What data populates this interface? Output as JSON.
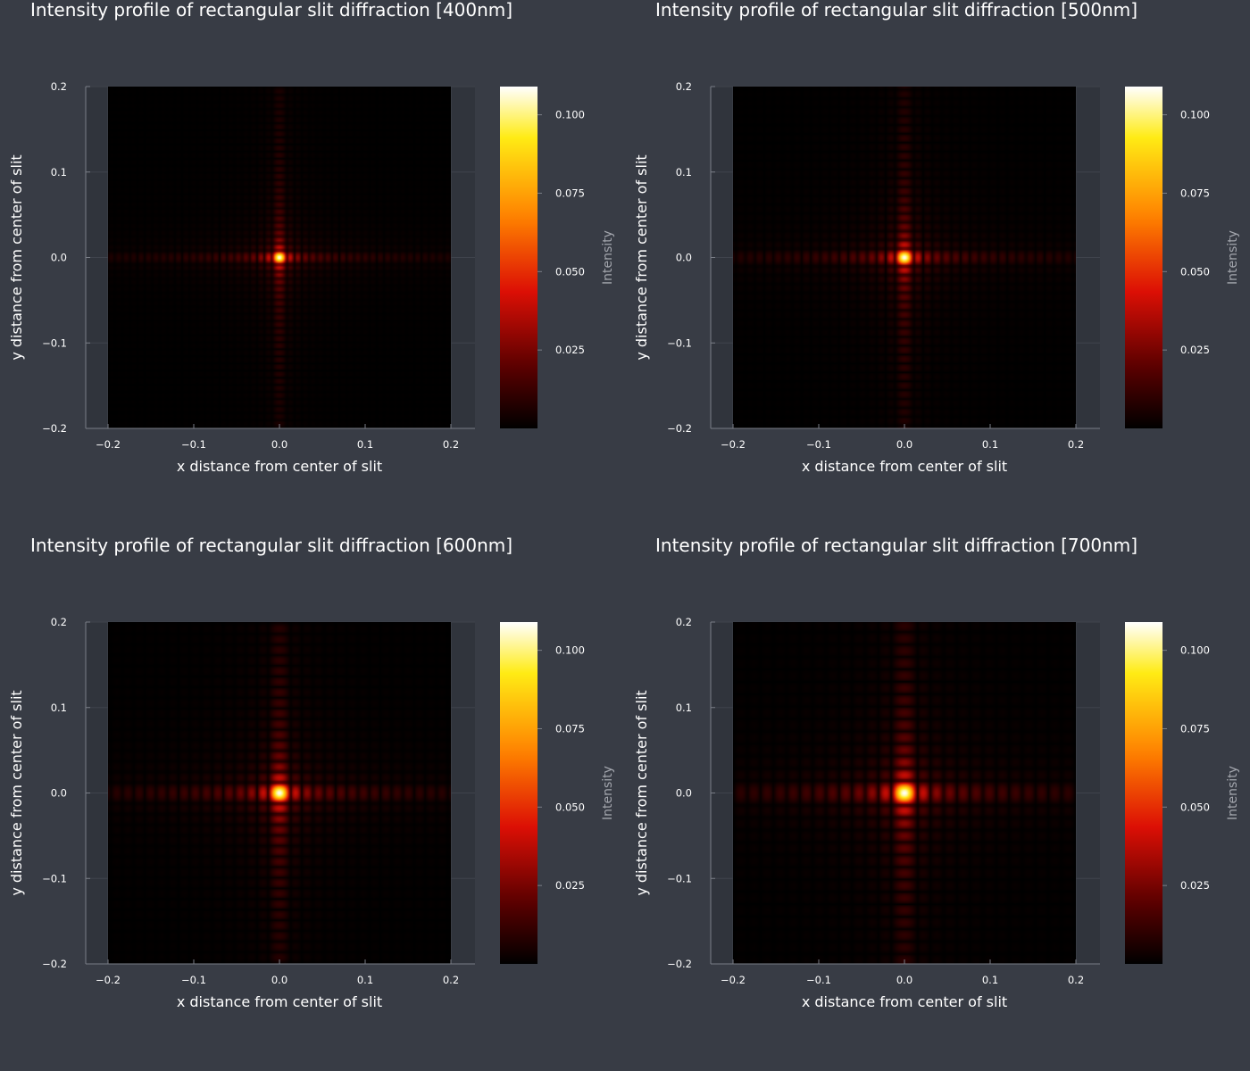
{
  "chart_data": [
    {
      "type": "heatmap",
      "title": "Intensity profile of rectangular slit diffraction [400nm]",
      "wavelength_nm": 400,
      "xlabel": "x distance from center of slit",
      "ylabel": "y distance from center of slit",
      "xlim": [
        -0.2,
        0.2
      ],
      "ylim": [
        -0.2,
        0.2
      ],
      "xticks": [
        -0.2,
        -0.1,
        0.0,
        0.1,
        0.2
      ],
      "yticks": [
        -0.2,
        -0.1,
        0.0,
        0.1,
        0.2
      ],
      "xtick_labels": [
        "−0.2",
        "−0.1",
        "0.0",
        "0.1",
        "0.2"
      ],
      "ytick_labels": [
        "−0.2",
        "−0.1",
        "0.0",
        "0.1",
        "0.2"
      ],
      "colorbar": {
        "label": "Intensity",
        "colormap": "hot",
        "range": [
          0,
          0.109
        ],
        "ticks": [
          0.025,
          0.05,
          0.075,
          0.1
        ],
        "tick_labels": [
          "0.025",
          "0.050",
          "0.075",
          "0.100"
        ]
      },
      "grid": true
    },
    {
      "type": "heatmap",
      "title": "Intensity profile of rectangular slit diffraction [500nm]",
      "wavelength_nm": 500,
      "xlabel": "x distance from center of slit",
      "ylabel": "y distance from center of slit",
      "xlim": [
        -0.2,
        0.2
      ],
      "ylim": [
        -0.2,
        0.2
      ],
      "xticks": [
        -0.2,
        -0.1,
        0.0,
        0.1,
        0.2
      ],
      "yticks": [
        -0.2,
        -0.1,
        0.0,
        0.1,
        0.2
      ],
      "xtick_labels": [
        "−0.2",
        "−0.1",
        "0.0",
        "0.1",
        "0.2"
      ],
      "ytick_labels": [
        "−0.2",
        "−0.1",
        "0.0",
        "0.1",
        "0.2"
      ],
      "colorbar": {
        "label": "Intensity",
        "colormap": "hot",
        "range": [
          0,
          0.109
        ],
        "ticks": [
          0.025,
          0.05,
          0.075,
          0.1
        ],
        "tick_labels": [
          "0.025",
          "0.050",
          "0.075",
          "0.100"
        ]
      },
      "grid": true
    },
    {
      "type": "heatmap",
      "title": "Intensity profile of rectangular slit diffraction [600nm]",
      "wavelength_nm": 600,
      "xlabel": "x distance from center of slit",
      "ylabel": "y distance from center of slit",
      "xlim": [
        -0.2,
        0.2
      ],
      "ylim": [
        -0.2,
        0.2
      ],
      "xticks": [
        -0.2,
        -0.1,
        0.0,
        0.1,
        0.2
      ],
      "yticks": [
        -0.2,
        -0.1,
        0.0,
        0.1,
        0.2
      ],
      "xtick_labels": [
        "−0.2",
        "−0.1",
        "0.0",
        "0.1",
        "0.2"
      ],
      "ytick_labels": [
        "−0.2",
        "−0.1",
        "0.0",
        "0.1",
        "0.2"
      ],
      "colorbar": {
        "label": "Intensity",
        "colormap": "hot",
        "range": [
          0,
          0.109
        ],
        "ticks": [
          0.025,
          0.05,
          0.075,
          0.1
        ],
        "tick_labels": [
          "0.025",
          "0.050",
          "0.075",
          "0.100"
        ]
      },
      "grid": true
    },
    {
      "type": "heatmap",
      "title": "Intensity profile of rectangular slit diffraction [700nm]",
      "wavelength_nm": 700,
      "xlabel": "x distance from center of slit",
      "ylabel": "y distance from center of slit",
      "xlim": [
        -0.2,
        0.2
      ],
      "ylim": [
        -0.2,
        0.2
      ],
      "xticks": [
        -0.2,
        -0.1,
        0.0,
        0.1,
        0.2
      ],
      "yticks": [
        -0.2,
        -0.1,
        0.0,
        0.1,
        0.2
      ],
      "xtick_labels": [
        "−0.2",
        "−0.1",
        "0.0",
        "0.1",
        "0.2"
      ],
      "ytick_labels": [
        "−0.2",
        "−0.1",
        "0.0",
        "0.1",
        "0.2"
      ],
      "colorbar": {
        "label": "Intensity",
        "colormap": "hot",
        "range": [
          0,
          0.109
        ],
        "ticks": [
          0.025,
          0.05,
          0.075,
          0.1
        ],
        "tick_labels": [
          "0.025",
          "0.050",
          "0.075",
          "0.100"
        ]
      },
      "grid": true
    }
  ],
  "colors": {
    "background": "#383c45",
    "plot_area": "#30343c",
    "text": "#ffffff",
    "colorbar_label": "#a3a6ad"
  }
}
